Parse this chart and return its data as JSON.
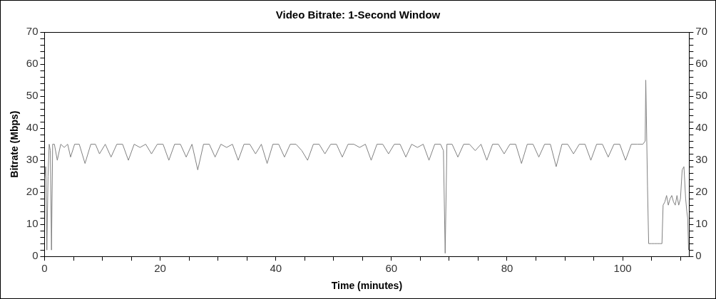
{
  "chart_data": {
    "type": "line",
    "title": "Video Bitrate: 1-Second Window",
    "xlabel": "Time (minutes)",
    "ylabel": "Bitrate (Mbps)",
    "xlim": [
      0,
      111.5
    ],
    "xticks": [
      0,
      {
        "value": 5,
        "label": null
      },
      {
        "value": 10,
        "label": null
      },
      {
        "value": 15,
        "label": null
      },
      20,
      {
        "value": 25,
        "label": null
      },
      {
        "value": 30,
        "label": null
      },
      {
        "value": 35,
        "label": null
      },
      40,
      {
        "value": 45,
        "label": null
      },
      {
        "value": 50,
        "label": null
      },
      {
        "value": 55,
        "label": null
      },
      60,
      {
        "value": 65,
        "label": null
      },
      {
        "value": 70,
        "label": null
      },
      {
        "value": 75,
        "label": null
      },
      80,
      {
        "value": 85,
        "label": null
      },
      {
        "value": 90,
        "label": null
      },
      {
        "value": 95,
        "label": null
      },
      100,
      {
        "value": 105,
        "label": null
      },
      {
        "value": 110,
        "label": null
      }
    ],
    "ylim": [
      0,
      70
    ],
    "yticks": [
      0,
      {
        "value": 2,
        "label": null
      },
      {
        "value": 4,
        "label": null
      },
      {
        "value": 6,
        "label": null
      },
      {
        "value": 8,
        "label": null
      },
      10,
      {
        "value": 12,
        "label": null
      },
      {
        "value": 14,
        "label": null
      },
      {
        "value": 16,
        "label": null
      },
      {
        "value": 18,
        "label": null
      },
      20,
      {
        "value": 22,
        "label": null
      },
      {
        "value": 24,
        "label": null
      },
      {
        "value": 26,
        "label": null
      },
      {
        "value": 28,
        "label": null
      },
      30,
      {
        "value": 32,
        "label": null
      },
      {
        "value": 34,
        "label": null
      },
      {
        "value": 36,
        "label": null
      },
      {
        "value": 38,
        "label": null
      },
      40,
      {
        "value": 42,
        "label": null
      },
      {
        "value": 44,
        "label": null
      },
      {
        "value": 46,
        "label": null
      },
      {
        "value": 48,
        "label": null
      },
      50,
      {
        "value": 52,
        "label": null
      },
      {
        "value": 54,
        "label": null
      },
      {
        "value": 56,
        "label": null
      },
      {
        "value": 58,
        "label": null
      },
      60,
      {
        "value": 62,
        "label": null
      },
      {
        "value": 64,
        "label": null
      },
      {
        "value": 66,
        "label": null
      },
      {
        "value": 68,
        "label": null
      },
      70
    ],
    "y2lim": [
      0,
      70
    ],
    "y2ticks": [
      0,
      {
        "value": 2,
        "label": null
      },
      {
        "value": 4,
        "label": null
      },
      {
        "value": 6,
        "label": null
      },
      {
        "value": 8,
        "label": null
      },
      10,
      {
        "value": 12,
        "label": null
      },
      {
        "value": 14,
        "label": null
      },
      {
        "value": 16,
        "label": null
      },
      {
        "value": 18,
        "label": null
      },
      20,
      {
        "value": 22,
        "label": null
      },
      {
        "value": 24,
        "label": null
      },
      {
        "value": 26,
        "label": null
      },
      {
        "value": 28,
        "label": null
      },
      30,
      {
        "value": 32,
        "label": null
      },
      {
        "value": 34,
        "label": null
      },
      {
        "value": 36,
        "label": null
      },
      {
        "value": 38,
        "label": null
      },
      40,
      {
        "value": 42,
        "label": null
      },
      {
        "value": 44,
        "label": null
      },
      {
        "value": 46,
        "label": null
      },
      {
        "value": 48,
        "label": null
      },
      50,
      {
        "value": 52,
        "label": null
      },
      {
        "value": 54,
        "label": null
      },
      {
        "value": 56,
        "label": null
      },
      {
        "value": 58,
        "label": null
      },
      60,
      {
        "value": 62,
        "label": null
      },
      {
        "value": 64,
        "label": null
      },
      {
        "value": 66,
        "label": null
      },
      {
        "value": 68,
        "label": null
      },
      70
    ],
    "grid": false,
    "legend": false,
    "marker": "none",
    "line_style": "solid",
    "series": [
      {
        "color": "#808080",
        "x": [
          0,
          0.2,
          0.4,
          0.6,
          0.8,
          1.0,
          1.2,
          1.4,
          1.7,
          2.2,
          2.8,
          3.4,
          4.0,
          4.5,
          5.2,
          6.0,
          7.0,
          8.0,
          8.8,
          9.5,
          10.5,
          11.5,
          12.5,
          13.5,
          14.5,
          15.5,
          16.5,
          17.5,
          18.5,
          19.5,
          20.5,
          21.5,
          22.5,
          23.5,
          24.5,
          25.5,
          26.5,
          27.5,
          28.5,
          29.5,
          30.5,
          31.5,
          32.5,
          33.5,
          34.5,
          35.5,
          36.5,
          37.5,
          38.5,
          39.5,
          40.5,
          41.5,
          42.5,
          43.5,
          44.5,
          45.5,
          46.5,
          47.5,
          48.5,
          49.5,
          50.5,
          51.5,
          52.5,
          53.5,
          54.5,
          55.5,
          56.5,
          57.5,
          58.5,
          59.5,
          60.5,
          61.5,
          62.5,
          63.5,
          64.5,
          65.5,
          66.5,
          67.5,
          68.5,
          69.0,
          69.3,
          69.6,
          70.5,
          71.5,
          72.5,
          73.5,
          74.5,
          75.5,
          76.5,
          77.5,
          78.5,
          79.5,
          80.5,
          81.5,
          82.5,
          83.5,
          84.5,
          85.5,
          86.5,
          87.5,
          88.5,
          89.5,
          90.5,
          91.5,
          92.5,
          93.5,
          94.5,
          95.5,
          96.5,
          97.5,
          98.5,
          99.5,
          100.5,
          101.5,
          102.5,
          103.5,
          103.9,
          104.0,
          104.1,
          104.3,
          104.5,
          105.0,
          105.5,
          106.0,
          106.5,
          106.8,
          107.0,
          107.3,
          107.6,
          107.9,
          108.2,
          108.5,
          108.8,
          109.1,
          109.4,
          109.7,
          110.0,
          110.3,
          110.6,
          110.9,
          111.1,
          111.25,
          111.4
        ],
        "values": [
          24,
          28,
          2,
          25,
          35,
          33,
          2,
          35,
          35,
          30,
          35,
          34,
          35,
          31,
          35,
          35,
          29,
          35,
          35,
          32,
          35,
          31,
          35,
          35,
          30,
          35,
          34,
          35,
          32,
          35,
          35,
          30,
          35,
          35,
          31,
          35,
          27,
          35,
          35,
          31,
          35,
          34,
          35,
          30,
          35,
          35,
          32,
          35,
          29,
          35,
          35,
          31,
          35,
          35,
          33,
          30,
          35,
          35,
          32,
          35,
          35,
          31,
          35,
          35,
          34,
          35,
          30,
          35,
          35,
          32,
          35,
          35,
          31,
          35,
          34,
          35,
          30,
          35,
          35,
          33,
          1,
          35,
          35,
          31,
          35,
          35,
          33,
          35,
          30,
          35,
          35,
          32,
          35,
          35,
          29,
          35,
          35,
          31,
          35,
          35,
          28,
          35,
          35,
          32,
          35,
          35,
          30,
          35,
          35,
          31,
          35,
          35,
          30,
          35,
          35,
          35,
          36,
          55,
          44,
          22,
          4,
          4,
          4,
          4,
          4,
          4,
          16,
          17,
          19,
          16,
          18,
          19,
          17,
          16,
          19,
          16,
          18,
          27,
          28,
          18,
          14,
          12,
          2
        ]
      }
    ]
  }
}
